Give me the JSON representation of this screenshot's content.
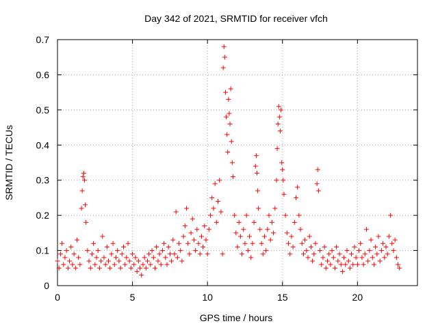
{
  "chart_data": {
    "type": "scatter",
    "title": "Day 342 of 2021, SRMTID for receiver vfch",
    "xlabel": "GPS time / hours",
    "ylabel": "SRMTID / TECUs",
    "xlim": [
      0,
      24
    ],
    "ylim": [
      0,
      0.7
    ],
    "xticks": [
      0,
      5,
      10,
      15,
      20
    ],
    "yticks": [
      0,
      0.1,
      0.2,
      0.3,
      0.4,
      0.5,
      0.6,
      0.7
    ],
    "xtick_labels": [
      "0",
      "5",
      "10",
      "15",
      "20"
    ],
    "ytick_labels": [
      "0",
      "0.1",
      "0.2",
      "0.3",
      "0.4",
      "0.5",
      "0.6",
      "0.7"
    ],
    "grid": true,
    "marker": "plus",
    "color": "#ff0000",
    "series": [
      {
        "name": "SRMTID",
        "points": [
          [
            0.0,
            0.07
          ],
          [
            0.1,
            0.05
          ],
          [
            0.2,
            0.09
          ],
          [
            0.3,
            0.12
          ],
          [
            0.4,
            0.06
          ],
          [
            0.5,
            0.08
          ],
          [
            0.6,
            0.1
          ],
          [
            0.7,
            0.05
          ],
          [
            0.8,
            0.07
          ],
          [
            0.9,
            0.11
          ],
          [
            1.0,
            0.06
          ],
          [
            1.1,
            0.09
          ],
          [
            1.2,
            0.05
          ],
          [
            1.3,
            0.13
          ],
          [
            1.4,
            0.08
          ],
          [
            1.5,
            0.06
          ],
          [
            1.6,
            0.22
          ],
          [
            1.65,
            0.27
          ],
          [
            1.7,
            0.31
          ],
          [
            1.75,
            0.32
          ],
          [
            1.8,
            0.3
          ],
          [
            1.85,
            0.23
          ],
          [
            1.9,
            0.18
          ],
          [
            2.0,
            0.1
          ],
          [
            2.1,
            0.07
          ],
          [
            2.2,
            0.05
          ],
          [
            2.3,
            0.09
          ],
          [
            2.4,
            0.12
          ],
          [
            2.5,
            0.06
          ],
          [
            2.6,
            0.08
          ],
          [
            2.7,
            0.1
          ],
          [
            2.8,
            0.05
          ],
          [
            2.9,
            0.07
          ],
          [
            3.0,
            0.14
          ],
          [
            3.1,
            0.08
          ],
          [
            3.2,
            0.06
          ],
          [
            3.3,
            0.11
          ],
          [
            3.4,
            0.07
          ],
          [
            3.5,
            0.05
          ],
          [
            3.6,
            0.09
          ],
          [
            3.7,
            0.12
          ],
          [
            3.8,
            0.06
          ],
          [
            3.9,
            0.08
          ],
          [
            4.0,
            0.1
          ],
          [
            4.1,
            0.07
          ],
          [
            4.2,
            0.05
          ],
          [
            4.3,
            0.09
          ],
          [
            4.4,
            0.11
          ],
          [
            4.5,
            0.06
          ],
          [
            4.6,
            0.08
          ],
          [
            4.7,
            0.12
          ],
          [
            4.8,
            0.07
          ],
          [
            4.9,
            0.05
          ],
          [
            5.0,
            0.09
          ],
          [
            5.1,
            0.06
          ],
          [
            5.2,
            0.08
          ],
          [
            5.3,
            0.04
          ],
          [
            5.4,
            0.07
          ],
          [
            5.5,
            0.05
          ],
          [
            5.6,
            0.03
          ],
          [
            5.7,
            0.06
          ],
          [
            5.8,
            0.08
          ],
          [
            5.9,
            0.05
          ],
          [
            6.0,
            0.07
          ],
          [
            6.1,
            0.09
          ],
          [
            6.2,
            0.06
          ],
          [
            6.3,
            0.1
          ],
          [
            6.4,
            0.08
          ],
          [
            6.5,
            0.05
          ],
          [
            6.6,
            0.11
          ],
          [
            6.7,
            0.07
          ],
          [
            6.8,
            0.09
          ],
          [
            6.9,
            0.06
          ],
          [
            7.0,
            0.1
          ],
          [
            7.1,
            0.12
          ],
          [
            7.2,
            0.08
          ],
          [
            7.3,
            0.06
          ],
          [
            7.4,
            0.11
          ],
          [
            7.5,
            0.09
          ],
          [
            7.6,
            0.07
          ],
          [
            7.7,
            0.13
          ],
          [
            7.8,
            0.09
          ],
          [
            7.9,
            0.21
          ],
          [
            8.0,
            0.08
          ],
          [
            8.1,
            0.12
          ],
          [
            8.2,
            0.1
          ],
          [
            8.3,
            0.07
          ],
          [
            8.4,
            0.14
          ],
          [
            8.5,
            0.17
          ],
          [
            8.6,
            0.22
          ],
          [
            8.7,
            0.12
          ],
          [
            8.8,
            0.09
          ],
          [
            8.9,
            0.15
          ],
          [
            9.0,
            0.19
          ],
          [
            9.1,
            0.13
          ],
          [
            9.2,
            0.1
          ],
          [
            9.3,
            0.16
          ],
          [
            9.4,
            0.12
          ],
          [
            9.5,
            0.09
          ],
          [
            9.6,
            0.14
          ],
          [
            9.7,
            0.11
          ],
          [
            9.8,
            0.17
          ],
          [
            9.9,
            0.13
          ],
          [
            10.0,
            0.09
          ],
          [
            10.1,
            0.16
          ],
          [
            10.2,
            0.2
          ],
          [
            10.3,
            0.25
          ],
          [
            10.4,
            0.22
          ],
          [
            10.5,
            0.29
          ],
          [
            10.6,
            0.18
          ],
          [
            10.7,
            0.24
          ],
          [
            10.8,
            0.3
          ],
          [
            10.9,
            0.21
          ],
          [
            11.0,
            0.09
          ],
          [
            11.05,
            0.62
          ],
          [
            11.1,
            0.68
          ],
          [
            11.15,
            0.65
          ],
          [
            11.2,
            0.55
          ],
          [
            11.25,
            0.48
          ],
          [
            11.3,
            0.43
          ],
          [
            11.35,
            0.38
          ],
          [
            11.4,
            0.53
          ],
          [
            11.45,
            0.49
          ],
          [
            11.5,
            0.46
          ],
          [
            11.55,
            0.56
          ],
          [
            11.6,
            0.41
          ],
          [
            11.65,
            0.35
          ],
          [
            11.7,
            0.31
          ],
          [
            11.8,
            0.2
          ],
          [
            11.9,
            0.15
          ],
          [
            12.0,
            0.11
          ],
          [
            12.1,
            0.18
          ],
          [
            12.2,
            0.14
          ],
          [
            12.3,
            0.09
          ],
          [
            12.4,
            0.16
          ],
          [
            12.5,
            0.12
          ],
          [
            12.6,
            0.2
          ],
          [
            12.7,
            0.1
          ],
          [
            12.8,
            0.14
          ],
          [
            12.9,
            0.08
          ],
          [
            13.0,
            0.12
          ],
          [
            13.1,
            0.18
          ],
          [
            13.2,
            0.34
          ],
          [
            13.25,
            0.37
          ],
          [
            13.3,
            0.32
          ],
          [
            13.35,
            0.27
          ],
          [
            13.4,
            0.22
          ],
          [
            13.5,
            0.16
          ],
          [
            13.6,
            0.12
          ],
          [
            13.7,
            0.09
          ],
          [
            13.8,
            0.14
          ],
          [
            13.9,
            0.1
          ],
          [
            14.0,
            0.16
          ],
          [
            14.1,
            0.2
          ],
          [
            14.2,
            0.13
          ],
          [
            14.3,
            0.18
          ],
          [
            14.4,
            0.15
          ],
          [
            14.5,
            0.22
          ],
          [
            14.6,
            0.3
          ],
          [
            14.65,
            0.39
          ],
          [
            14.7,
            0.46
          ],
          [
            14.75,
            0.51
          ],
          [
            14.8,
            0.48
          ],
          [
            14.85,
            0.44
          ],
          [
            14.9,
            0.5
          ],
          [
            14.95,
            0.35
          ],
          [
            15.0,
            0.33
          ],
          [
            15.05,
            0.3
          ],
          [
            15.1,
            0.26
          ],
          [
            15.2,
            0.2
          ],
          [
            15.3,
            0.15
          ],
          [
            15.4,
            0.12
          ],
          [
            15.5,
            0.09
          ],
          [
            15.6,
            0.14
          ],
          [
            15.7,
            0.11
          ],
          [
            15.8,
            0.18
          ],
          [
            15.9,
            0.25
          ],
          [
            16.0,
            0.28
          ],
          [
            16.1,
            0.2
          ],
          [
            16.2,
            0.16
          ],
          [
            16.3,
            0.12
          ],
          [
            16.4,
            0.09
          ],
          [
            16.5,
            0.13
          ],
          [
            16.6,
            0.1
          ],
          [
            16.7,
            0.08
          ],
          [
            16.8,
            0.14
          ],
          [
            16.9,
            0.11
          ],
          [
            17.0,
            0.07
          ],
          [
            17.1,
            0.09
          ],
          [
            17.2,
            0.12
          ],
          [
            17.3,
            0.29
          ],
          [
            17.35,
            0.33
          ],
          [
            17.4,
            0.27
          ],
          [
            17.5,
            0.1
          ],
          [
            17.6,
            0.06
          ],
          [
            17.7,
            0.08
          ],
          [
            17.8,
            0.11
          ],
          [
            17.9,
            0.05
          ],
          [
            18.0,
            0.07
          ],
          [
            18.1,
            0.09
          ],
          [
            18.2,
            0.06
          ],
          [
            18.3,
            0.1
          ],
          [
            18.4,
            0.08
          ],
          [
            18.5,
            0.05
          ],
          [
            18.6,
            0.11
          ],
          [
            18.7,
            0.07
          ],
          [
            18.8,
            0.09
          ],
          [
            18.9,
            0.06
          ],
          [
            19.0,
            0.04
          ],
          [
            19.1,
            0.08
          ],
          [
            19.2,
            0.06
          ],
          [
            19.3,
            0.1
          ],
          [
            19.4,
            0.07
          ],
          [
            19.5,
            0.05
          ],
          [
            19.6,
            0.09
          ],
          [
            19.7,
            0.06
          ],
          [
            19.8,
            0.11
          ],
          [
            19.9,
            0.08
          ],
          [
            20.0,
            0.06
          ],
          [
            20.1,
            0.1
          ],
          [
            20.2,
            0.12
          ],
          [
            20.3,
            0.08
          ],
          [
            20.4,
            0.06
          ],
          [
            20.5,
            0.09
          ],
          [
            20.6,
            0.16
          ],
          [
            20.7,
            0.07
          ],
          [
            20.8,
            0.1
          ],
          [
            20.9,
            0.13
          ],
          [
            21.0,
            0.08
          ],
          [
            21.1,
            0.06
          ],
          [
            21.2,
            0.11
          ],
          [
            21.3,
            0.09
          ],
          [
            21.4,
            0.14
          ],
          [
            21.5,
            0.07
          ],
          [
            21.6,
            0.1
          ],
          [
            21.7,
            0.12
          ],
          [
            21.8,
            0.08
          ],
          [
            21.9,
            0.11
          ],
          [
            22.0,
            0.09
          ],
          [
            22.1,
            0.14
          ],
          [
            22.2,
            0.2
          ],
          [
            22.3,
            0.12
          ],
          [
            22.4,
            0.1
          ],
          [
            22.5,
            0.13
          ],
          [
            22.6,
            0.08
          ],
          [
            22.7,
            0.06
          ],
          [
            22.8,
            0.05
          ]
        ]
      }
    ]
  }
}
